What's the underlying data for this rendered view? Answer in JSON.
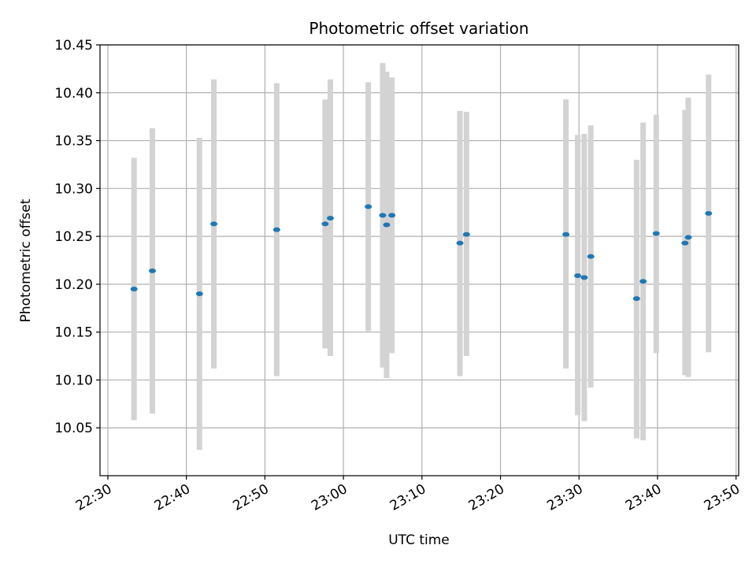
{
  "chart_data": {
    "type": "scatter",
    "title": "Photometric offset variation",
    "xlabel": "UTC time",
    "ylabel": "Photometric offset",
    "xlim": [
      "22:29:00",
      "23:50:20"
    ],
    "ylim": [
      10.0,
      10.45
    ],
    "grid": true,
    "colors": {
      "point": "#1f77b4",
      "errorbar": "#d3d3d3",
      "grid": "#b0b0b0",
      "axis": "#000000"
    },
    "x_ticks": [
      "22:30",
      "22:40",
      "22:50",
      "23:00",
      "23:10",
      "23:20",
      "23:30",
      "23:40",
      "23:50"
    ],
    "y_ticks": [
      "10.05",
      "10.10",
      "10.15",
      "10.20",
      "10.25",
      "10.30",
      "10.35",
      "10.40",
      "10.45"
    ],
    "series": [
      {
        "points": [
          {
            "x": "22:33:20",
            "y": 10.195,
            "ylow": 10.058,
            "yhigh": 10.332
          },
          {
            "x": "22:35:40",
            "y": 10.214,
            "ylow": 10.065,
            "yhigh": 10.363
          },
          {
            "x": "22:41:40",
            "y": 10.19,
            "ylow": 10.027,
            "yhigh": 10.353
          },
          {
            "x": "22:43:30",
            "y": 10.263,
            "ylow": 10.112,
            "yhigh": 10.414
          },
          {
            "x": "22:51:30",
            "y": 10.257,
            "ylow": 10.104,
            "yhigh": 10.41
          },
          {
            "x": "22:57:40",
            "y": 10.263,
            "ylow": 10.133,
            "yhigh": 10.393
          },
          {
            "x": "22:58:20",
            "y": 10.269,
            "ylow": 10.125,
            "yhigh": 10.414
          },
          {
            "x": "23:03:10",
            "y": 10.281,
            "ylow": 10.151,
            "yhigh": 10.411
          },
          {
            "x": "23:05:00",
            "y": 10.272,
            "ylow": 10.113,
            "yhigh": 10.431
          },
          {
            "x": "23:05:30",
            "y": 10.262,
            "ylow": 10.102,
            "yhigh": 10.422
          },
          {
            "x": "23:06:10",
            "y": 10.272,
            "ylow": 10.128,
            "yhigh": 10.416
          },
          {
            "x": "23:14:50",
            "y": 10.243,
            "ylow": 10.104,
            "yhigh": 10.381
          },
          {
            "x": "23:15:40",
            "y": 10.252,
            "ylow": 10.125,
            "yhigh": 10.38
          },
          {
            "x": "23:28:20",
            "y": 10.252,
            "ylow": 10.112,
            "yhigh": 10.393
          },
          {
            "x": "23:29:50",
            "y": 10.209,
            "ylow": 10.063,
            "yhigh": 10.356
          },
          {
            "x": "23:30:40",
            "y": 10.207,
            "ylow": 10.057,
            "yhigh": 10.357
          },
          {
            "x": "23:31:30",
            "y": 10.229,
            "ylow": 10.092,
            "yhigh": 10.366
          },
          {
            "x": "23:37:20",
            "y": 10.185,
            "ylow": 10.039,
            "yhigh": 10.33
          },
          {
            "x": "23:38:10",
            "y": 10.203,
            "ylow": 10.037,
            "yhigh": 10.369
          },
          {
            "x": "23:39:50",
            "y": 10.253,
            "ylow": 10.128,
            "yhigh": 10.377
          },
          {
            "x": "23:43:30",
            "y": 10.243,
            "ylow": 10.105,
            "yhigh": 10.382
          },
          {
            "x": "23:43:55",
            "y": 10.249,
            "ylow": 10.103,
            "yhigh": 10.395
          },
          {
            "x": "23:46:30",
            "y": 10.274,
            "ylow": 10.129,
            "yhigh": 10.419
          }
        ]
      }
    ]
  }
}
